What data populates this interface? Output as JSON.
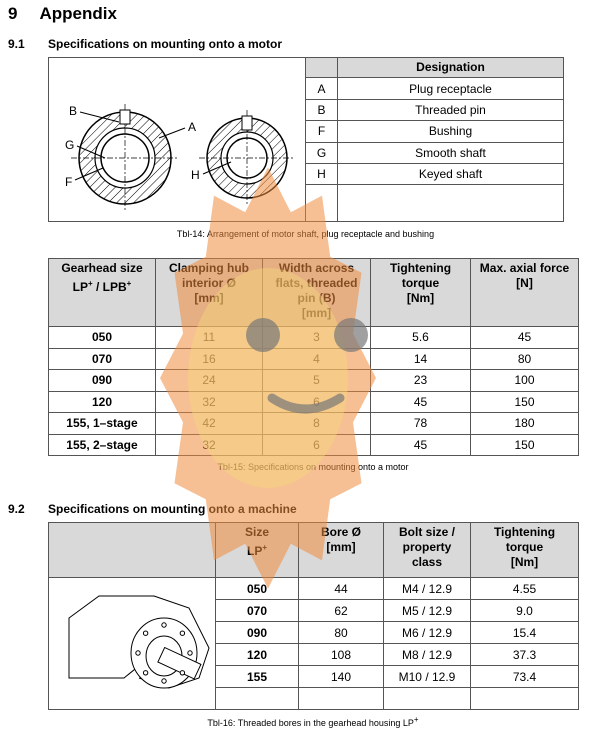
{
  "section": {
    "number": "9",
    "title": "Appendix"
  },
  "motor": {
    "number": "9.1",
    "title": "Specifications on mounting onto a motor",
    "figure_labels": {
      "B": "B",
      "A": "A",
      "G": "G",
      "F": "F",
      "H": "H"
    },
    "designation_header": "Designation",
    "designations": [
      [
        "A",
        "Plug receptacle"
      ],
      [
        "B",
        "Threaded pin"
      ],
      [
        "F",
        "Bushing"
      ],
      [
        "G",
        "Smooth shaft"
      ],
      [
        "H",
        "Keyed shaft"
      ]
    ],
    "caption1": "Tbl-14: Arrangement of motor shaft, plug receptacle and bushing",
    "headers": [
      [
        [
          "Gearhead size"
        ],
        [
          "LP",
          {
            "sup": "+"
          },
          " / LPB",
          {
            "sup": "+"
          }
        ]
      ],
      [
        [
          "Clamping hub"
        ],
        [
          "interior Ø"
        ],
        [
          "[mm]"
        ]
      ],
      [
        [
          "Width across"
        ],
        [
          "flats, threaded"
        ],
        [
          "pin (B)"
        ],
        [
          "[mm]"
        ]
      ],
      [
        [
          "Tightening"
        ],
        [
          "torque"
        ],
        [
          "[Nm]"
        ]
      ],
      [
        [
          "Max. axial force"
        ],
        [
          "[N]"
        ]
      ]
    ],
    "rows": [
      [
        "050",
        "11",
        "3",
        "5.6",
        "45"
      ],
      [
        "070",
        "16",
        "4",
        "14",
        "80"
      ],
      [
        "090",
        "24",
        "5",
        "23",
        "100"
      ],
      [
        "120",
        "32",
        "6",
        "45",
        "150"
      ],
      [
        "155, 1–stage",
        "42",
        "8",
        "78",
        "180"
      ],
      [
        "155, 2–stage",
        "32",
        "6",
        "45",
        "150"
      ]
    ],
    "caption2": "Tbl-15: Specifications on mounting onto a motor"
  },
  "machine": {
    "number": "9.2",
    "title": "Specifications on mounting onto a machine",
    "headers": [
      [
        [
          "Size"
        ],
        [
          "LP",
          {
            "sup": "+"
          }
        ]
      ],
      [
        [
          "Bore Ø"
        ],
        [
          "[mm]"
        ]
      ],
      [
        [
          "Bolt size /"
        ],
        [
          "property"
        ],
        [
          "class"
        ]
      ],
      [
        [
          "Tightening"
        ],
        [
          "torque"
        ],
        [
          "[Nm]"
        ]
      ]
    ],
    "rows": [
      [
        "050",
        "44",
        "M4 / 12.9",
        "4.55"
      ],
      [
        "070",
        "62",
        "M5 / 12.9",
        "9.0"
      ],
      [
        "090",
        "80",
        "M6 / 12.9",
        "15.4"
      ],
      [
        "120",
        "108",
        "M8 / 12.9",
        "37.3"
      ],
      [
        "155",
        "140",
        "M10 / 12.9",
        "73.4"
      ]
    ],
    "caption": [
      "Tbl-16: Threaded bores in the gearhead housing LP",
      {
        "sup": "+"
      }
    ]
  }
}
